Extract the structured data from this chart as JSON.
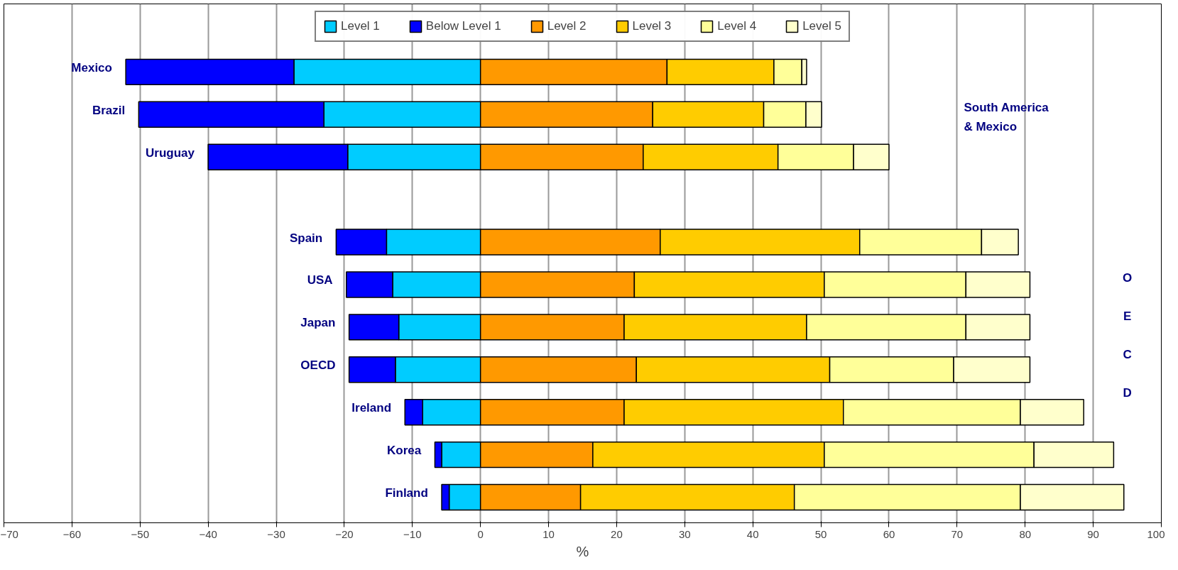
{
  "chart_data": {
    "type": "bar",
    "orientation": "horizontal",
    "stacked": true,
    "xlabel": "%",
    "categories": [
      "Mexico",
      "Brazil",
      "Uruguay",
      null,
      "Spain",
      "USA",
      "Japan",
      "OECD",
      "Ireland",
      "Korea",
      "Finland"
    ],
    "series": [
      {
        "name": "Level 1",
        "color": "#00ccff",
        "values": [
          -27.4,
          -23.0,
          -19.5,
          null,
          -13.8,
          -12.9,
          -12.0,
          -12.5,
          -8.5,
          -5.7,
          -4.6
        ]
      },
      {
        "name": "Below Level 1",
        "color": "#0000ff",
        "values": [
          -24.7,
          -27.2,
          -20.5,
          null,
          -7.4,
          -6.8,
          -7.3,
          -6.8,
          -2.6,
          -1.0,
          -1.1
        ]
      },
      {
        "name": "Level 2",
        "color": "#ff9900",
        "values": [
          27.4,
          25.3,
          23.9,
          null,
          26.4,
          22.6,
          21.1,
          22.9,
          21.1,
          16.5,
          14.7
        ]
      },
      {
        "name": "Level 3",
        "color": "#ffcc00",
        "values": [
          15.7,
          16.3,
          19.8,
          null,
          29.3,
          27.9,
          26.8,
          28.4,
          32.2,
          34.0,
          31.4
        ]
      },
      {
        "name": "Level 4",
        "color": "#ffff99",
        "values": [
          4.1,
          6.2,
          11.1,
          null,
          17.9,
          20.8,
          23.4,
          18.2,
          26.0,
          30.8,
          33.2
        ]
      },
      {
        "name": "Level 5",
        "color": "#ffffcc",
        "values": [
          0.7,
          2.3,
          5.2,
          null,
          5.4,
          9.4,
          9.4,
          11.2,
          9.3,
          11.7,
          15.2
        ]
      }
    ],
    "xlim": [
      -70,
      100
    ],
    "xticks": [
      -70,
      -60,
      -50,
      -40,
      -30,
      -20,
      -10,
      0,
      10,
      20,
      30,
      40,
      50,
      60,
      70,
      80,
      90,
      100
    ],
    "grid": "x",
    "legend": "top",
    "annotations": [
      "South America & Mexico",
      "O E C D"
    ]
  }
}
